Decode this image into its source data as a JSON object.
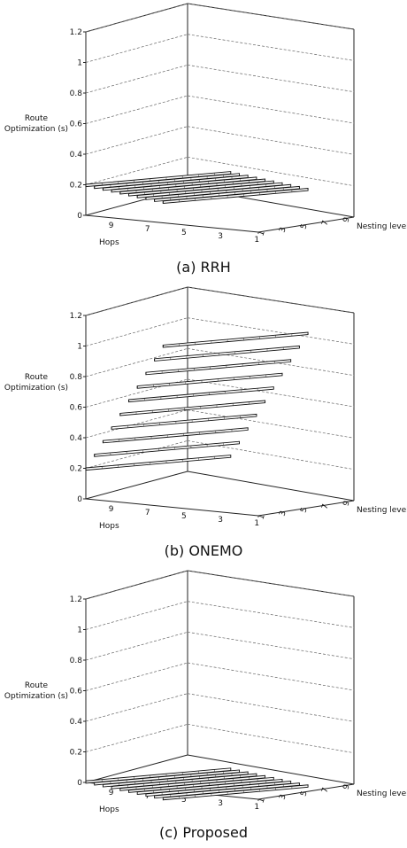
{
  "chart_data": [
    {
      "type": "3d-bar",
      "caption": "(a) RRH",
      "zlabel": "Route Optimization (s)",
      "xlabel": "Hops",
      "ylabel": "Nesting level",
      "hops_ticks": [
        "9",
        "7",
        "5",
        "3",
        "1"
      ],
      "nesting_ticks": [
        "1",
        "3",
        "5",
        "7",
        "9"
      ],
      "z_ticks": [
        "0",
        "0.2",
        "0.4",
        "0.6",
        "0.8",
        "1",
        "1.2"
      ],
      "zlim": [
        0,
        1.2
      ],
      "hops": [
        1,
        2,
        3,
        4,
        5,
        6,
        7,
        8,
        9,
        10
      ],
      "nesting_levels": [
        1,
        2,
        3,
        4,
        5,
        6,
        7,
        8,
        9,
        10
      ],
      "series": [
        {
          "nesting_level": 1,
          "values": [
            0.2,
            0.2,
            0.2,
            0.2,
            0.2,
            0.2,
            0.2,
            0.2,
            0.2,
            0.2
          ]
        },
        {
          "nesting_level": 2,
          "values": [
            0.2,
            0.2,
            0.2,
            0.2,
            0.2,
            0.2,
            0.2,
            0.2,
            0.2,
            0.2
          ]
        },
        {
          "nesting_level": 3,
          "values": [
            0.2,
            0.2,
            0.2,
            0.2,
            0.2,
            0.2,
            0.2,
            0.2,
            0.2,
            0.2
          ]
        },
        {
          "nesting_level": 4,
          "values": [
            0.2,
            0.2,
            0.2,
            0.2,
            0.2,
            0.2,
            0.2,
            0.2,
            0.2,
            0.2
          ]
        },
        {
          "nesting_level": 5,
          "values": [
            0.2,
            0.2,
            0.2,
            0.2,
            0.2,
            0.2,
            0.2,
            0.2,
            0.2,
            0.2
          ]
        },
        {
          "nesting_level": 6,
          "values": [
            0.2,
            0.2,
            0.2,
            0.2,
            0.2,
            0.2,
            0.2,
            0.2,
            0.2,
            0.2
          ]
        },
        {
          "nesting_level": 7,
          "values": [
            0.2,
            0.2,
            0.2,
            0.2,
            0.2,
            0.2,
            0.2,
            0.2,
            0.2,
            0.2
          ]
        },
        {
          "nesting_level": 8,
          "values": [
            0.2,
            0.2,
            0.2,
            0.2,
            0.2,
            0.2,
            0.2,
            0.2,
            0.2,
            0.2
          ]
        },
        {
          "nesting_level": 9,
          "values": [
            0.2,
            0.2,
            0.2,
            0.2,
            0.2,
            0.2,
            0.2,
            0.2,
            0.2,
            0.2
          ]
        },
        {
          "nesting_level": 10,
          "values": [
            0.2,
            0.2,
            0.2,
            0.2,
            0.2,
            0.2,
            0.2,
            0.2,
            0.2,
            0.2
          ]
        }
      ],
      "grid": true
    },
    {
      "type": "3d-bar",
      "caption": "(b) ONEMO",
      "zlabel": "Route Optimization (s)",
      "xlabel": "Hops",
      "ylabel": "Nesting level",
      "hops_ticks": [
        "9",
        "7",
        "5",
        "3",
        "1"
      ],
      "nesting_ticks": [
        "1",
        "3",
        "5",
        "7",
        "9"
      ],
      "z_ticks": [
        "0",
        "0.2",
        "0.4",
        "0.6",
        "0.8",
        "1",
        "1.2"
      ],
      "zlim": [
        0,
        1.2
      ],
      "hops": [
        1,
        2,
        3,
        4,
        5,
        6,
        7,
        8,
        9,
        10
      ],
      "nesting_levels": [
        1,
        2,
        3,
        4,
        5,
        6,
        7,
        8,
        9,
        10
      ],
      "series": [
        {
          "nesting_level": 1,
          "values": [
            0.2,
            0.2,
            0.2,
            0.2,
            0.2,
            0.2,
            0.2,
            0.2,
            0.2,
            0.2
          ]
        },
        {
          "nesting_level": 2,
          "values": [
            0.3,
            0.3,
            0.3,
            0.3,
            0.3,
            0.3,
            0.3,
            0.3,
            0.3,
            0.3
          ]
        },
        {
          "nesting_level": 3,
          "values": [
            0.4,
            0.4,
            0.4,
            0.4,
            0.4,
            0.4,
            0.4,
            0.4,
            0.4,
            0.4
          ]
        },
        {
          "nesting_level": 4,
          "values": [
            0.5,
            0.5,
            0.5,
            0.5,
            0.5,
            0.5,
            0.5,
            0.5,
            0.5,
            0.5
          ]
        },
        {
          "nesting_level": 5,
          "values": [
            0.6,
            0.6,
            0.6,
            0.6,
            0.6,
            0.6,
            0.6,
            0.6,
            0.6,
            0.6
          ]
        },
        {
          "nesting_level": 6,
          "values": [
            0.7,
            0.7,
            0.7,
            0.7,
            0.7,
            0.7,
            0.7,
            0.7,
            0.7,
            0.7
          ]
        },
        {
          "nesting_level": 7,
          "values": [
            0.8,
            0.8,
            0.8,
            0.8,
            0.8,
            0.8,
            0.8,
            0.8,
            0.8,
            0.8
          ]
        },
        {
          "nesting_level": 8,
          "values": [
            0.9,
            0.9,
            0.9,
            0.9,
            0.9,
            0.9,
            0.9,
            0.9,
            0.9,
            0.9
          ]
        },
        {
          "nesting_level": 9,
          "values": [
            1.0,
            1.0,
            1.0,
            1.0,
            1.0,
            1.0,
            1.0,
            1.0,
            1.0,
            1.0
          ]
        },
        {
          "nesting_level": 10,
          "values": [
            1.1,
            1.1,
            1.1,
            1.1,
            1.1,
            1.1,
            1.1,
            1.1,
            1.1,
            1.1
          ]
        }
      ],
      "grid": true
    },
    {
      "type": "3d-bar",
      "caption": "(c) Proposed",
      "zlabel": "Route Optimization (s)",
      "xlabel": "Hops",
      "ylabel": "Nesting level",
      "hops_ticks": [
        "9",
        "7",
        "5",
        "3",
        "1"
      ],
      "nesting_ticks": [
        "1",
        "3",
        "5",
        "7",
        "9"
      ],
      "z_ticks": [
        "0",
        "0.2",
        "0.4",
        "0.6",
        "0.8",
        "1",
        "1.2"
      ],
      "zlim": [
        0,
        1.2
      ],
      "hops": [
        1,
        2,
        3,
        4,
        5,
        6,
        7,
        8,
        9,
        10
      ],
      "nesting_levels": [
        1,
        2,
        3,
        4,
        5,
        6,
        7,
        8,
        9,
        10
      ],
      "series": [
        {
          "nesting_level": 1,
          "values": [
            0.01,
            0.01,
            0.01,
            0.01,
            0.01,
            0.01,
            0.01,
            0.01,
            0.01,
            0.01
          ]
        },
        {
          "nesting_level": 2,
          "values": [
            0.01,
            0.01,
            0.01,
            0.01,
            0.01,
            0.01,
            0.01,
            0.01,
            0.01,
            0.01
          ]
        },
        {
          "nesting_level": 3,
          "values": [
            0.01,
            0.01,
            0.01,
            0.01,
            0.01,
            0.01,
            0.01,
            0.01,
            0.01,
            0.01
          ]
        },
        {
          "nesting_level": 4,
          "values": [
            0.01,
            0.01,
            0.01,
            0.01,
            0.01,
            0.01,
            0.01,
            0.01,
            0.01,
            0.01
          ]
        },
        {
          "nesting_level": 5,
          "values": [
            0.01,
            0.01,
            0.01,
            0.01,
            0.01,
            0.01,
            0.01,
            0.01,
            0.01,
            0.01
          ]
        },
        {
          "nesting_level": 6,
          "values": [
            0.01,
            0.01,
            0.01,
            0.01,
            0.01,
            0.01,
            0.01,
            0.01,
            0.01,
            0.01
          ]
        },
        {
          "nesting_level": 7,
          "values": [
            0.01,
            0.01,
            0.01,
            0.01,
            0.01,
            0.01,
            0.01,
            0.01,
            0.01,
            0.01
          ]
        },
        {
          "nesting_level": 8,
          "values": [
            0.01,
            0.01,
            0.01,
            0.01,
            0.01,
            0.01,
            0.01,
            0.01,
            0.01,
            0.01
          ]
        },
        {
          "nesting_level": 9,
          "values": [
            0.01,
            0.01,
            0.01,
            0.01,
            0.01,
            0.01,
            0.01,
            0.01,
            0.01,
            0.01
          ]
        },
        {
          "nesting_level": 10,
          "values": [
            0.01,
            0.01,
            0.01,
            0.01,
            0.01,
            0.01,
            0.01,
            0.01,
            0.01,
            0.01
          ]
        }
      ],
      "grid": true
    }
  ]
}
